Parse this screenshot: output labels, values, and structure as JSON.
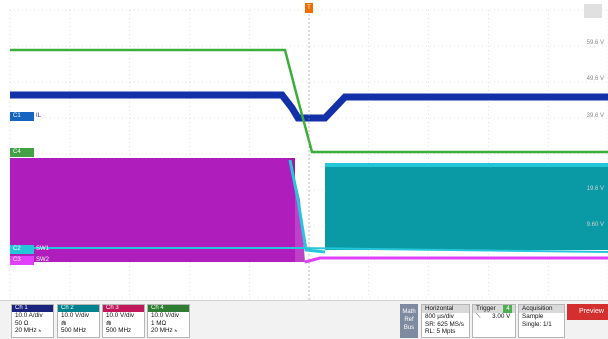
{
  "screen": {
    "trigger_marker": "T",
    "levels": [
      "59.6 V",
      "49.6 V",
      "39.6 V",
      "19.6 V",
      "9.60 V"
    ],
    "markers": [
      {
        "id": "c1",
        "tag": "C1",
        "label": "IL",
        "color": "#1565c0"
      },
      {
        "id": "c4",
        "tag": "C4",
        "label": "VOUT",
        "color": "#43a047"
      },
      {
        "id": "c2",
        "tag": "C2",
        "label": "SW1",
        "color": "#26c6da"
      },
      {
        "id": "c3",
        "tag": "C3",
        "label": "SW2",
        "color": "#e040fb"
      }
    ]
  },
  "channels": [
    {
      "name": "Ch 1",
      "header_color": "#1a237e",
      "rows": [
        "10.0 A/div",
        "50 Ω",
        "20 MHz ₕ"
      ]
    },
    {
      "name": "Ch 2",
      "header_color": "#00838f",
      "rows": [
        "10.0 V/div",
        "⋒",
        "500 MHz"
      ]
    },
    {
      "name": "Ch 3",
      "header_color": "#c2185b",
      "rows": [
        "10.0 V/div",
        "⋒",
        "500 MHz"
      ]
    },
    {
      "name": "Ch 4",
      "header_color": "#2e7d32",
      "rows": [
        "10.0 V/div",
        "1 MΩ",
        "20 MHz ₕ"
      ]
    }
  ],
  "math_ref_bus": [
    "Math",
    "Ref",
    "Bus"
  ],
  "horizontal": {
    "title": "Horizontal",
    "rows": [
      "800 µs/div",
      "SR: 625 MS/s",
      "RL: 5 Mpts"
    ]
  },
  "trigger": {
    "title": "Trigger",
    "channel": "4",
    "slope": "⟍",
    "level": "3.00 V"
  },
  "acquisition": {
    "title": "Acquisition",
    "rows": [
      "Sample",
      "Single: 1/1"
    ]
  },
  "preview_label": "Preview"
}
